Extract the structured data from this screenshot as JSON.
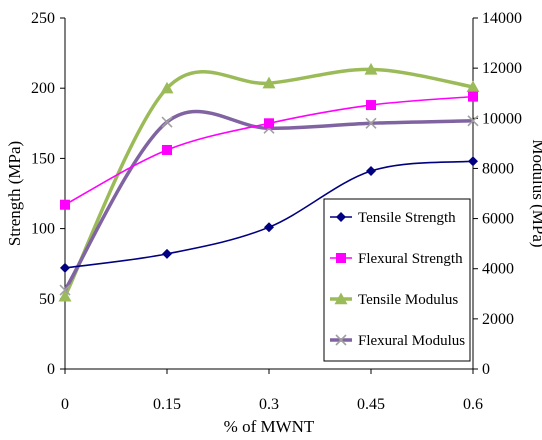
{
  "chart_data": {
    "type": "line",
    "title": "",
    "xlabel": "% of MWNT",
    "ylabel_left": "Strength (MPa)",
    "ylabel_right": "Modulus (MPa)",
    "x": [
      0,
      0.15,
      0.3,
      0.45,
      0.6
    ],
    "x_tick_labels": [
      "0",
      "0.15",
      "0.3",
      "0.45",
      "0.6"
    ],
    "ylim_left": [
      0,
      250
    ],
    "y_ticks_left": [
      "0",
      "50",
      "100",
      "150",
      "200",
      "250"
    ],
    "ylim_right": [
      0,
      14000
    ],
    "y_ticks_right": [
      "0",
      "2000",
      "4000",
      "6000",
      "8000",
      "10000",
      "12000",
      "14000"
    ],
    "legend_position": "lower-right",
    "grid": false,
    "series": [
      {
        "name": "Tensile Strength",
        "axis": "left",
        "color": "#000080",
        "marker": "diamond",
        "values": [
          72,
          82,
          101,
          141,
          148
        ]
      },
      {
        "name": "Flexural Strength",
        "axis": "left",
        "color": "#ff00ff",
        "marker": "square",
        "values": [
          117,
          156,
          175,
          188,
          194
        ]
      },
      {
        "name": "Tensile Modulus",
        "axis": "right",
        "color": "#9bbb59",
        "marker": "triangle",
        "values": [
          2900,
          11200,
          11400,
          11950,
          11250
        ]
      },
      {
        "name": "Flexural Modulus",
        "axis": "right",
        "color": "#8064a2",
        "marker": "x",
        "values": [
          3150,
          9850,
          9600,
          9800,
          9900
        ]
      }
    ]
  }
}
